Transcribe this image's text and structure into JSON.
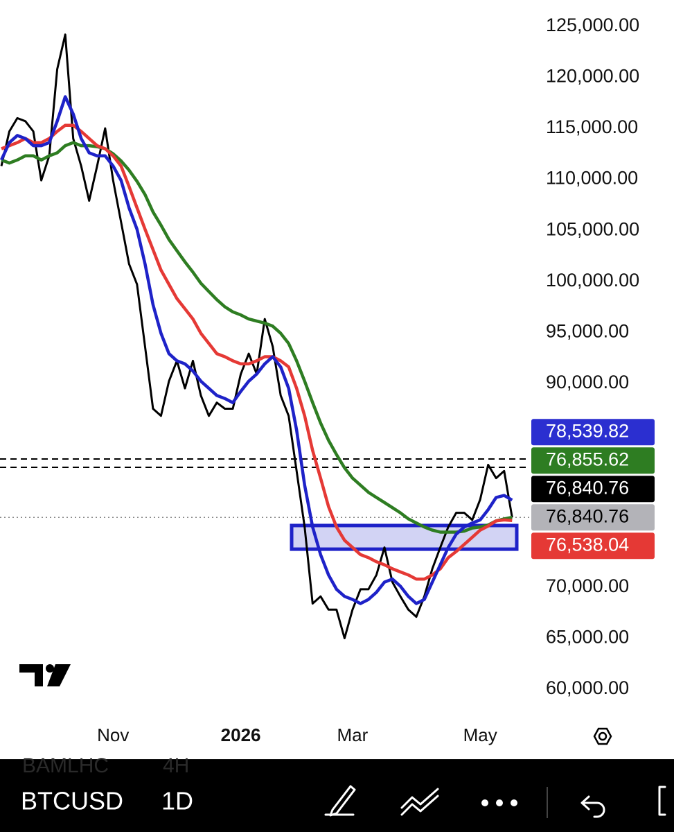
{
  "chart_data": {
    "type": "line",
    "categories": [
      null,
      null,
      null,
      null,
      null,
      null,
      null,
      null,
      null,
      null,
      null,
      null,
      null,
      null,
      "Nov",
      null,
      null,
      null,
      null,
      null,
      null,
      null,
      null,
      null,
      null,
      null,
      null,
      null,
      null,
      null,
      "2026",
      null,
      null,
      null,
      null,
      null,
      null,
      null,
      null,
      null,
      null,
      null,
      null,
      null,
      "Mar",
      null,
      null,
      null,
      null,
      null,
      null,
      null,
      null,
      null,
      null,
      null,
      null,
      null,
      null,
      null,
      "May",
      null,
      null,
      null,
      null
    ],
    "series": [
      {
        "color": "#000000",
        "values": [
          111300,
          114700,
          116000,
          115700,
          114700,
          109900,
          112300,
          120800,
          124200,
          114000,
          111300,
          107900,
          111300,
          115000,
          109900,
          105800,
          101700,
          99700,
          93600,
          87500,
          86800,
          90200,
          92200,
          89500,
          92200,
          88800,
          86800,
          88100,
          87500,
          87500,
          90900,
          92900,
          90900,
          96300,
          93600,
          88800,
          86800,
          81400,
          75900,
          68400,
          69100,
          67800,
          67800,
          65000,
          67800,
          69800,
          69800,
          71200,
          73900,
          70500,
          69100,
          67800,
          67100,
          69100,
          71800,
          73900,
          75900,
          77300,
          77300,
          76600,
          78600,
          82000,
          80700,
          81400,
          76840.76
        ]
      },
      {
        "color": "#2e7d22",
        "values": [
          111900,
          111600,
          111900,
          112300,
          112300,
          111900,
          112300,
          112600,
          113300,
          113600,
          113300,
          113300,
          113200,
          113000,
          112500,
          111800,
          110900,
          109800,
          108500,
          106800,
          105500,
          104100,
          103000,
          101900,
          100900,
          99800,
          99000,
          98200,
          97500,
          97000,
          96700,
          96300,
          96100,
          95900,
          95600,
          94900,
          93900,
          92200,
          90200,
          88100,
          86100,
          84400,
          83000,
          81700,
          80700,
          80000,
          79300,
          78800,
          78300,
          77800,
          77300,
          76700,
          76300,
          75900,
          75600,
          75400,
          75400,
          75400,
          75500,
          75800,
          75900,
          76100,
          76500,
          76700,
          76855.62
        ]
      },
      {
        "color": "#e53935",
        "values": [
          113000,
          113300,
          113600,
          114000,
          113600,
          113600,
          114000,
          114700,
          115300,
          115300,
          114700,
          114000,
          113300,
          113000,
          112300,
          111300,
          109300,
          107200,
          105100,
          103100,
          101100,
          99700,
          98300,
          97300,
          96300,
          94900,
          93900,
          92900,
          92600,
          92200,
          91900,
          91900,
          92200,
          92600,
          92600,
          92200,
          91600,
          89500,
          86800,
          83400,
          80700,
          77900,
          75900,
          74600,
          73900,
          73200,
          72900,
          72500,
          72200,
          71800,
          71500,
          71200,
          70800,
          70800,
          71200,
          71800,
          72900,
          73500,
          74200,
          74900,
          75600,
          76000,
          76500,
          76600,
          76538.04
        ]
      },
      {
        "color": "#1e22c8",
        "values": [
          111900,
          113600,
          114300,
          114000,
          113300,
          113300,
          113600,
          115700,
          118100,
          116400,
          114000,
          112600,
          112300,
          112300,
          111300,
          109900,
          107200,
          105100,
          101700,
          97700,
          94900,
          92900,
          92200,
          91900,
          91200,
          90200,
          89500,
          88800,
          88500,
          88100,
          89200,
          90200,
          90900,
          91900,
          92600,
          91600,
          89500,
          85400,
          80000,
          75900,
          73200,
          71200,
          69800,
          69100,
          68800,
          68400,
          68800,
          69500,
          70500,
          70800,
          70100,
          69100,
          68400,
          68800,
          70500,
          72200,
          73900,
          75200,
          75900,
          76300,
          76600,
          77600,
          78800,
          79000,
          78539.82
        ]
      }
    ],
    "ylim": [
      60000,
      125000
    ],
    "yticks": [
      {
        "value": 60000,
        "label": "60,000.00"
      },
      {
        "value": 65000,
        "label": "65,000.00"
      },
      {
        "value": 70000,
        "label": "70,000.00"
      },
      {
        "value": 90000,
        "label": "90,000.00"
      },
      {
        "value": 95000,
        "label": "95,000.00"
      },
      {
        "value": 100000,
        "label": "100,000.00"
      },
      {
        "value": 105000,
        "label": "105,000.00"
      },
      {
        "value": 110000,
        "label": "110,000.00"
      },
      {
        "value": 115000,
        "label": "115,000.00"
      },
      {
        "value": 120000,
        "label": "120,000.00"
      },
      {
        "value": 125000,
        "label": "125,000.00"
      }
    ],
    "price_tags": [
      {
        "value": 78539.82,
        "label": "78,539.82",
        "color": "#2b2fd0",
        "text_color": "#ffffff"
      },
      {
        "value": 76855.62,
        "label": "76,855.62",
        "color": "#2e7d22",
        "text_color": "#ffffff"
      },
      {
        "value": 76840.76,
        "label": "76,840.76",
        "color": "#000000",
        "text_color": "#ffffff"
      },
      {
        "value": 76840.76,
        "label": "76,840.76",
        "color": "#b3b3b8",
        "text_color": "#000000"
      },
      {
        "value": 76538.04,
        "label": "76,538.04",
        "color": "#e53935",
        "text_color": "#ffffff"
      }
    ],
    "horizontal_lines": [
      82570,
      81760
    ],
    "current_price": 76840.76,
    "zone": {
      "low": 73730,
      "high": 76050,
      "color": "#1e22c8"
    }
  },
  "toolbar": {
    "symbol": "BTCUSD",
    "interval": "1D",
    "ghost_symbol": "BAMLHC",
    "ghost_interval": "4H"
  }
}
